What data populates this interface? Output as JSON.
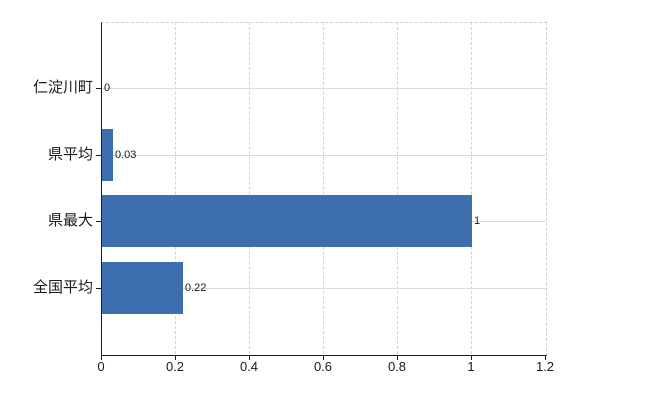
{
  "chart_data": {
    "type": "bar",
    "orientation": "horizontal",
    "title": "",
    "xlabel": "",
    "ylabel": "",
    "categories": [
      "仁淀川町",
      "県平均",
      "県最大",
      "全国平均"
    ],
    "values": [
      0,
      0.03,
      1,
      0.22
    ],
    "value_labels": [
      "0",
      "0.03",
      "1",
      "0.22"
    ],
    "x_ticks": [
      0,
      0.2,
      0.4,
      0.6,
      0.8,
      1,
      1.2
    ],
    "x_tick_labels": [
      "0",
      "0.2",
      "0.4",
      "0.6",
      "0.8",
      "1",
      "1.2"
    ],
    "xlim": [
      0,
      1.2
    ],
    "grid": true,
    "legend": false,
    "bar_color": "#3d6ead",
    "axis_color": "#1a1a1a",
    "vertical_grid_color": "#d4d4d4",
    "horizontal_grid_color": "#d8ddd8",
    "background_color": "#ffffff"
  }
}
